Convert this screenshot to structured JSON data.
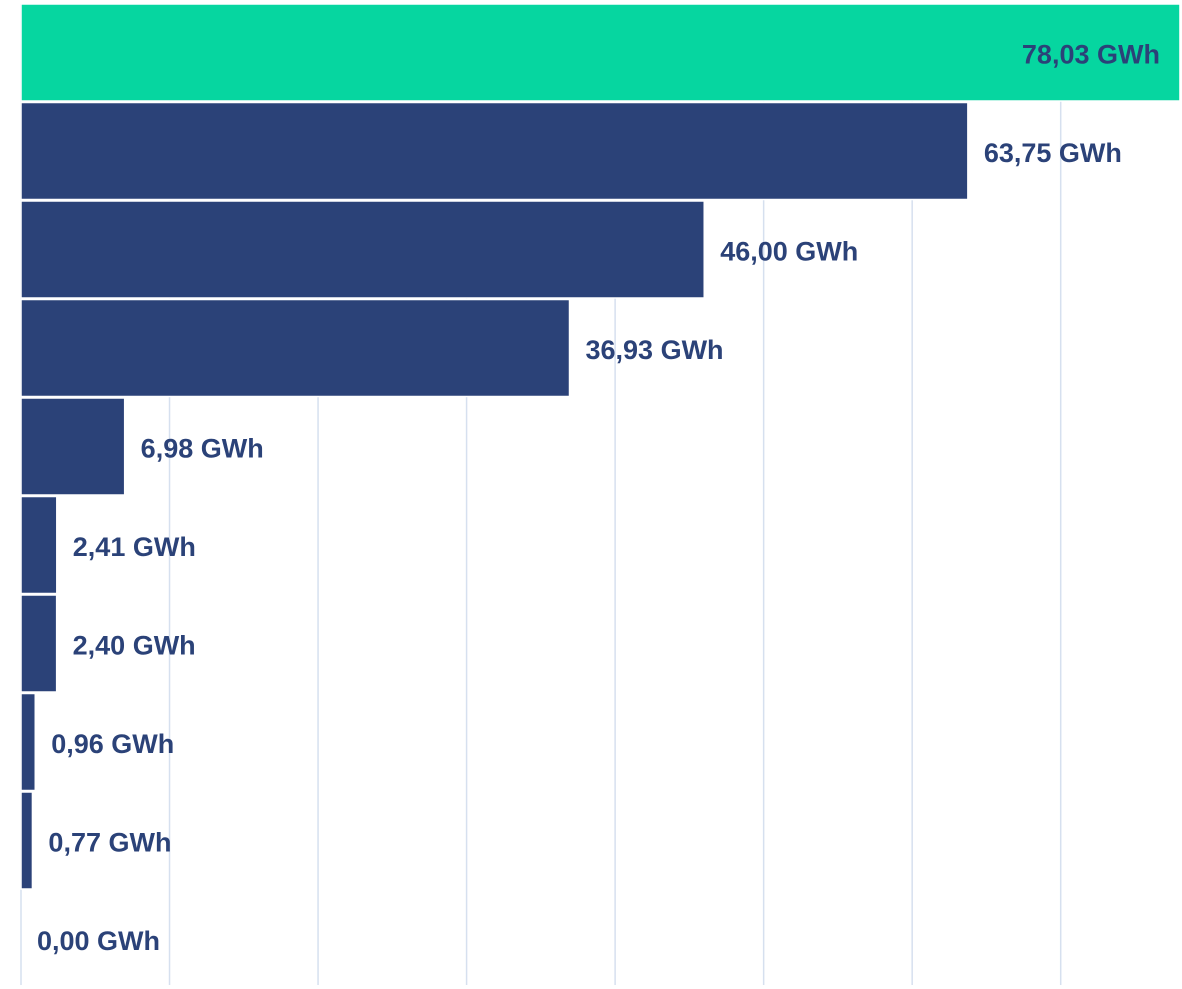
{
  "chart_data": {
    "type": "bar",
    "orientation": "horizontal",
    "values": [
      78.03,
      63.75,
      46.0,
      36.93,
      6.98,
      2.41,
      2.4,
      0.96,
      0.77,
      0.0
    ],
    "value_labels": [
      "78,03 GWh",
      "63,75 GWh",
      "46,00 GWh",
      "36,93 GWh",
      "6,98 GWh",
      "2,41 GWh",
      "2,40 GWh",
      "0,96 GWh",
      "0,77 GWh",
      "0,00 GWh"
    ],
    "colors": [
      "#06d6a0",
      "#2b4278",
      "#2b4278",
      "#2b4278",
      "#2b4278",
      "#2b4278",
      "#2b4278",
      "#2b4278",
      "#2b4278",
      "#2b4278"
    ],
    "xlim": [
      0,
      78.1
    ],
    "xticks": [
      0,
      10,
      20,
      30,
      40,
      50,
      60,
      70
    ],
    "grid": true
  }
}
